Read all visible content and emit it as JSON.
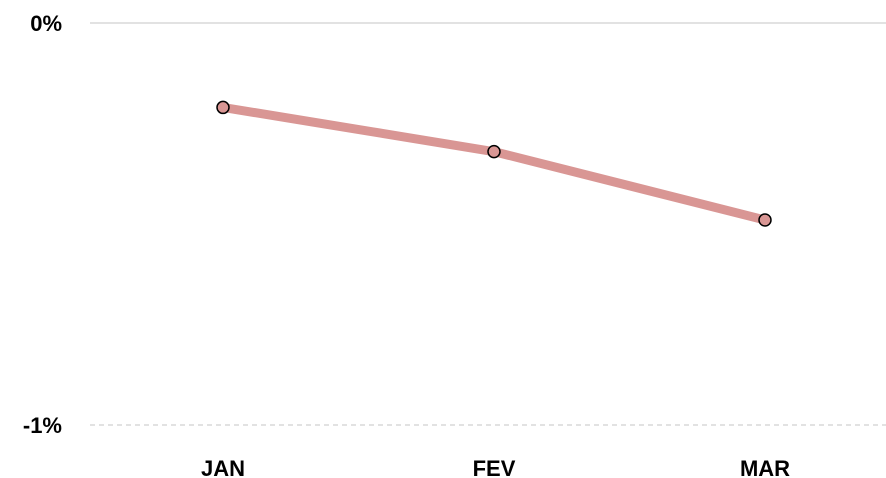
{
  "chart_data": {
    "type": "line",
    "categories": [
      "JAN",
      "FEV",
      "MAR"
    ],
    "series": [
      {
        "values": [
          -0.21,
          -0.32,
          -0.49
        ]
      }
    ],
    "y_ticks": [
      "0%",
      "-1%"
    ],
    "ylim": [
      -1,
      0
    ],
    "grid": true,
    "legend": "none",
    "colors": {
      "line": "#D99694",
      "marker_fill": "#D99694",
      "marker_stroke": "#000000",
      "grid_top": "#D9D9D9",
      "grid_bottom": "#D9D9D9"
    }
  }
}
